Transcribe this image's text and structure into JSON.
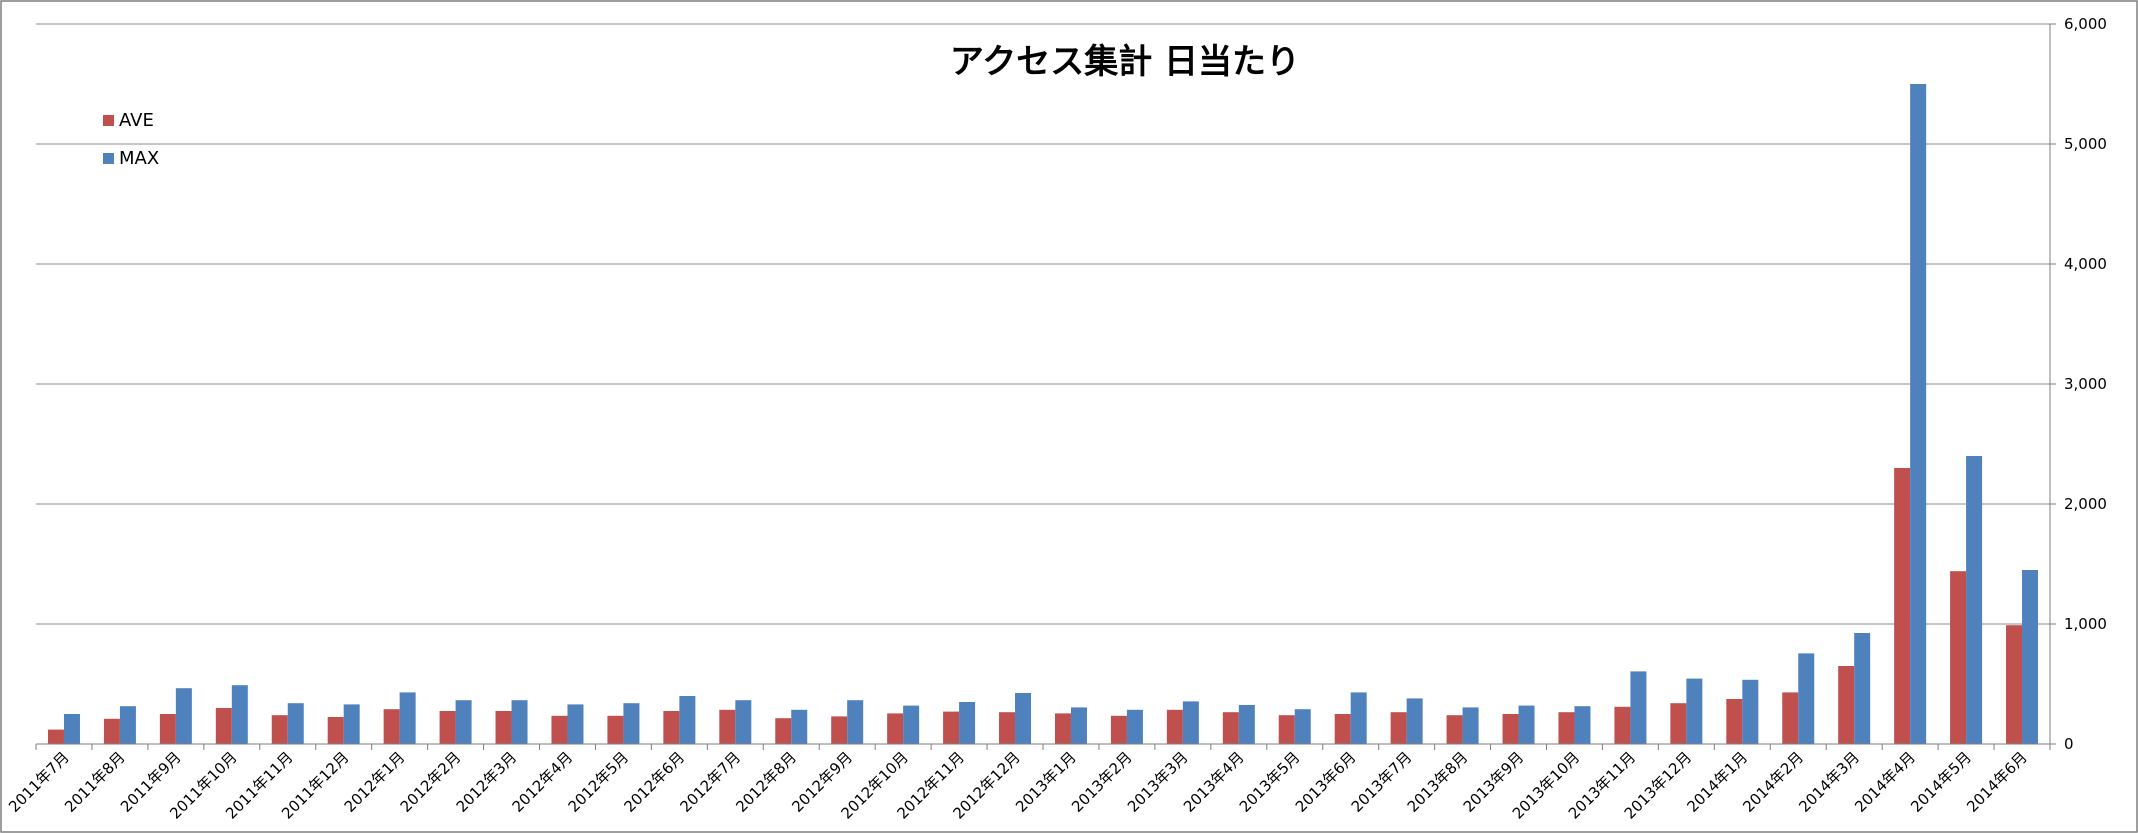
{
  "chart_data": {
    "type": "bar",
    "title": "アクセス集計 日当たり",
    "xlabel": "",
    "ylabel": "",
    "ylim": [
      0,
      6000
    ],
    "yticks": [
      "0",
      "1,000",
      "2,000",
      "3,000",
      "4,000",
      "5,000",
      "6,000"
    ],
    "ytick_values": [
      0,
      1000,
      2000,
      3000,
      4000,
      5000,
      6000
    ],
    "y_axis_side": "right",
    "grid": true,
    "legend_position": "top-left",
    "categories": [
      "2011年7月",
      "2011年8月",
      "2011年9月",
      "2011年10月",
      "2011年11月",
      "2011年12月",
      "2012年1月",
      "2012年2月",
      "2012年3月",
      "2012年4月",
      "2012年5月",
      "2012年6月",
      "2012年7月",
      "2012年8月",
      "2012年9月",
      "2012年10月",
      "2012年11月",
      "2012年12月",
      "2013年1月",
      "2013年2月",
      "2013年3月",
      "2013年4月",
      "2013年5月",
      "2013年6月",
      "2013年7月",
      "2013年8月",
      "2013年9月",
      "2013年10月",
      "2013年11月",
      "2013年12月",
      "2014年1月",
      "2014年2月",
      "2014年3月",
      "2014年4月",
      "2014年5月",
      "2014年6月"
    ],
    "series": [
      {
        "name": "AVE",
        "color": "#c0504d",
        "values": [
          120,
          210,
          250,
          300,
          240,
          225,
          290,
          275,
          275,
          235,
          235,
          275,
          285,
          215,
          230,
          255,
          270,
          265,
          255,
          235,
          285,
          265,
          240,
          250,
          265,
          240,
          250,
          265,
          310,
          340,
          375,
          430,
          650,
          2300,
          1440,
          990
        ]
      },
      {
        "name": "MAX",
        "color": "#4f81bd",
        "values": [
          250,
          315,
          465,
          490,
          340,
          330,
          430,
          365,
          365,
          330,
          340,
          400,
          365,
          285,
          365,
          320,
          350,
          425,
          305,
          285,
          355,
          325,
          290,
          430,
          380,
          305,
          320,
          315,
          605,
          545,
          535,
          755,
          925,
          5500,
          2400,
          1450
        ]
      }
    ]
  }
}
